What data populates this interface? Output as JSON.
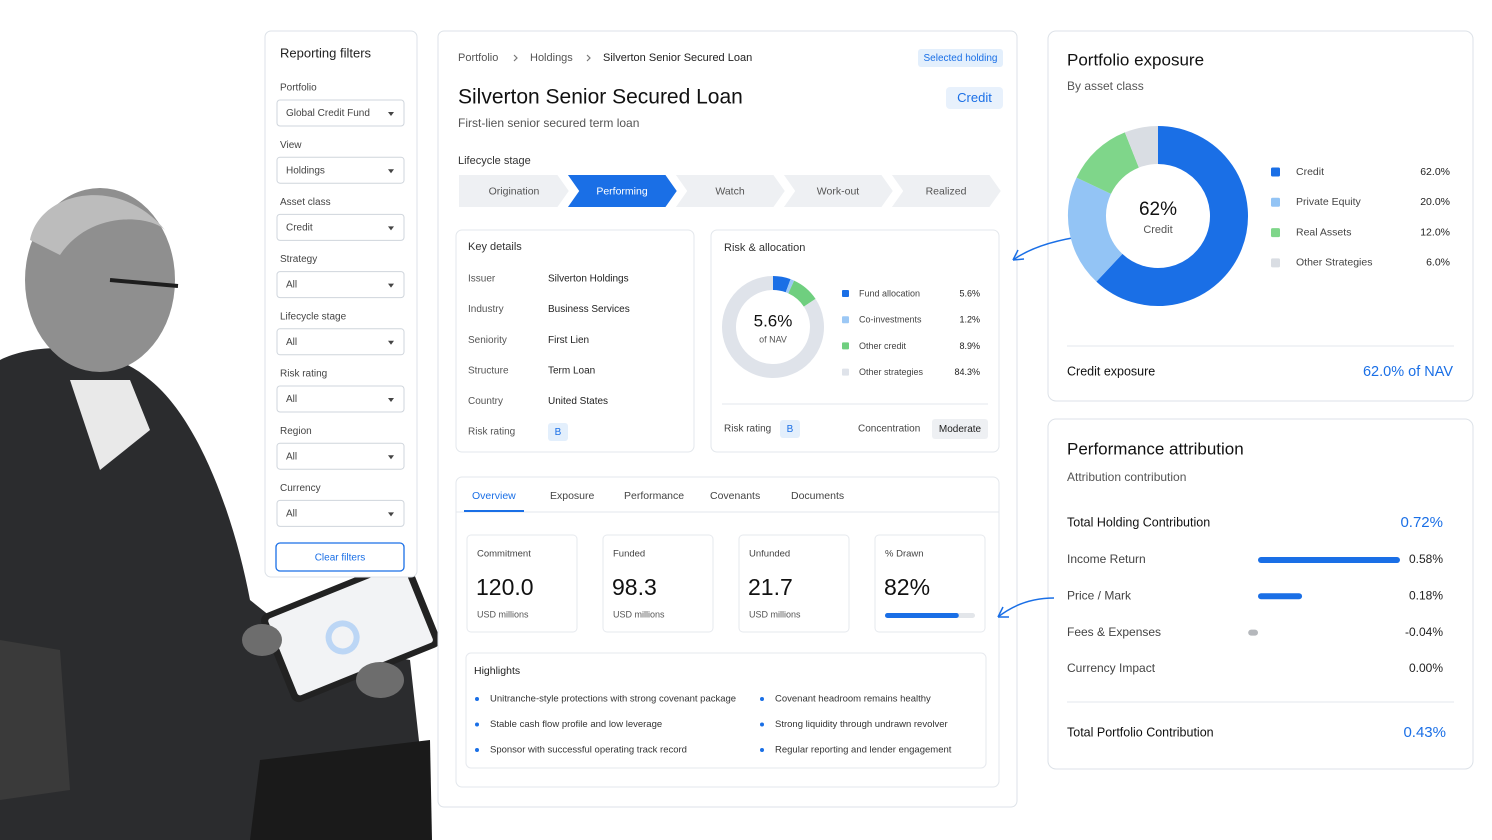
{
  "filters": {
    "title": "Reporting filters",
    "fields": [
      {
        "label": "Portfolio",
        "value": "Global Credit Fund"
      },
      {
        "label": "View",
        "value": "Holdings"
      },
      {
        "label": "Asset class",
        "value": "Credit"
      },
      {
        "label": "Strategy",
        "value": "All"
      },
      {
        "label": "Lifecycle stage",
        "value": "All"
      },
      {
        "label": "Risk rating",
        "value": "All"
      },
      {
        "label": "Region",
        "value": "All"
      },
      {
        "label": "Currency",
        "value": "All"
      }
    ],
    "clear_button": "Clear filters"
  },
  "holding": {
    "breadcrumb": [
      "Portfolio",
      "Holdings",
      "Silverton Senior Secured Loan"
    ],
    "badge": "Selected holding",
    "title": "Silverton Senior Secured Loan",
    "subtitle": "First-lien senior secured term loan",
    "tag": "Credit",
    "lifecycle": {
      "label": "Lifecycle stage",
      "stages": [
        "Origination",
        "Performing",
        "Watch",
        "Work-out",
        "Realized"
      ],
      "active": 1
    }
  },
  "key_details": {
    "title": "Key details",
    "rows": [
      [
        "Issuer",
        "Silverton Holdings"
      ],
      [
        "Industry",
        "Business Services"
      ],
      [
        "Seniority",
        "First Lien"
      ],
      [
        "Structure",
        "Term Loan"
      ],
      [
        "Country",
        "United States"
      ]
    ],
    "risk_rating_label": "Risk rating",
    "risk_rating": "B"
  },
  "risk_allocation": {
    "title": "Risk & allocation",
    "center_value": "5.6%",
    "center_label": "of NAV",
    "items": [
      {
        "label": "Fund allocation",
        "value": 5.6,
        "value_label": "5.6%",
        "color": "#1a6fe6"
      },
      {
        "label": "Co-investments",
        "value": 1.2,
        "value_label": "1.2%",
        "color": "#9cc8f5"
      },
      {
        "label": "Other credit",
        "value": 8.9,
        "value_label": "8.9%",
        "color": "#6fcf7f"
      },
      {
        "label": "Other strategies",
        "value": 84.3,
        "value_label": "84.3%",
        "color": "#dfe3ea"
      }
    ],
    "risk_rating_label": "Risk rating",
    "risk_rating": "B",
    "concentration_label": "Concentration",
    "concentration": "Moderate"
  },
  "tabs": {
    "items": [
      "Overview",
      "Exposure",
      "Performance",
      "Covenants",
      "Documents"
    ],
    "active": 0
  },
  "metrics": [
    {
      "label": "Commitment",
      "value": "120.0",
      "unit": "USD millions"
    },
    {
      "label": "Funded",
      "value": "98.3",
      "unit": "USD millions"
    },
    {
      "label": "Unfunded",
      "value": "21.7",
      "unit": "USD millions"
    }
  ],
  "drawn": {
    "label": "% Drawn",
    "value": 82,
    "value_label": "82%"
  },
  "highlights": {
    "title": "Highlights",
    "items": [
      "Unitranche-style protections with strong covenant package",
      "Stable cash flow profile and low leverage",
      "Sponsor with successful operating track record",
      "Covenant headroom remains healthy",
      "Strong liquidity through undrawn revolver",
      "Regular reporting and lender engagement"
    ]
  },
  "exposure": {
    "title": "Portfolio exposure",
    "subtitle": "By asset class",
    "center_value": "62%",
    "center_label": "Credit",
    "items": [
      {
        "label": "Credit",
        "value": 62.0,
        "value_label": "62.0%",
        "color": "#1a6fe6"
      },
      {
        "label": "Private Equity",
        "value": 20.0,
        "value_label": "20.0%",
        "color": "#93c4f5"
      },
      {
        "label": "Real Assets",
        "value": 12.0,
        "value_label": "12.0%",
        "color": "#7fd68a"
      },
      {
        "label": "Other Strategies",
        "value": 6.0,
        "value_label": "6.0%",
        "color": "#d9dde3"
      }
    ],
    "footer_label": "Credit exposure",
    "footer_value": "62.0% of NAV"
  },
  "attribution": {
    "title": "Performance attribution",
    "subtitle": "Attribution contribution",
    "total_label": "Total Holding Contribution",
    "total_value": "0.72%",
    "rows": [
      {
        "label": "Income Return",
        "value": 0.58,
        "value_label": "0.58%",
        "color": "#1a6fe6"
      },
      {
        "label": "Price / Mark",
        "value": 0.18,
        "value_label": "0.18%",
        "color": "#1a6fe6"
      },
      {
        "label": "Fees & Expenses",
        "value": -0.04,
        "value_label": "-0.04%",
        "color": "#b5b8bc"
      },
      {
        "label": "Currency Impact",
        "value": 0.0,
        "value_label": "0.00%",
        "color": "#1a6fe6"
      }
    ],
    "footer_label": "Total Portfolio Contribution",
    "footer_value": "0.43%"
  }
}
